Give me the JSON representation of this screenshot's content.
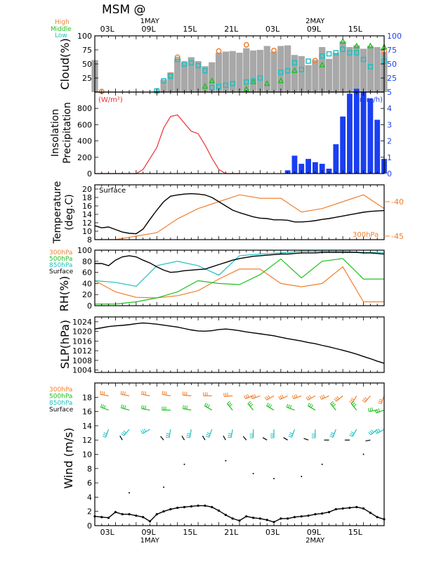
{
  "header": {
    "title": "MSM  @",
    "top_day_labels": [
      "1MAY",
      "2MAY"
    ],
    "bottom_day_labels": [
      "1MAY",
      "2MAY"
    ],
    "time_labels": [
      "03L",
      "09L",
      "15L",
      "21L",
      "03L",
      "09L",
      "15L"
    ]
  },
  "colors": {
    "high": "#f08030",
    "middle": "#20c020",
    "low": "#20c0c0",
    "surface": "#000000",
    "insolation": "#e83030",
    "precip": "#1a3ff0",
    "cloud_bar": "#a8a8a8",
    "right_axis": "#1a3ff0"
  },
  "chart_data": [
    {
      "panel": "cloud",
      "type": "bar",
      "ylabel": "Cloud(%)",
      "ylim": [
        0,
        100
      ],
      "yticks": [
        25,
        50,
        75,
        100
      ],
      "right_yticks": [
        25,
        50,
        75,
        100
      ],
      "legend": [
        "High",
        "Middle",
        "Low"
      ],
      "x": [
        0,
        1,
        2,
        3,
        4,
        5,
        6,
        7,
        8,
        9,
        10,
        11,
        12,
        13,
        14,
        15,
        16,
        17,
        18,
        19,
        20,
        21,
        22,
        23,
        24,
        25,
        26,
        27,
        28,
        29,
        30,
        31,
        32,
        33,
        34,
        35,
        36,
        37,
        38,
        39,
        40,
        41,
        42
      ],
      "series": [
        {
          "name": "Total",
          "values": [
            57,
            0,
            0,
            0,
            0,
            0,
            0,
            0,
            0,
            3,
            22,
            35,
            60,
            53,
            62,
            55,
            46,
            53,
            70,
            72,
            73,
            70,
            78,
            74,
            75,
            82,
            72,
            82,
            83,
            66,
            64,
            48,
            57,
            80,
            59,
            70,
            90,
            80,
            83,
            77,
            82,
            80,
            71
          ]
        },
        {
          "name": "High",
          "values": [
            null,
            1,
            null,
            null,
            null,
            null,
            null,
            null,
            null,
            null,
            null,
            30,
            62,
            null,
            null,
            null,
            null,
            null,
            73,
            null,
            null,
            null,
            84,
            null,
            null,
            null,
            74,
            null,
            null,
            null,
            null,
            null,
            56,
            null,
            null,
            null,
            null,
            null,
            null,
            null,
            null,
            null,
            73
          ]
        },
        {
          "name": "Middle",
          "values": [
            null,
            null,
            null,
            null,
            null,
            null,
            null,
            null,
            null,
            null,
            null,
            null,
            null,
            null,
            null,
            null,
            10,
            20,
            null,
            null,
            null,
            null,
            5,
            18,
            null,
            15,
            null,
            20,
            null,
            38,
            null,
            null,
            null,
            48,
            null,
            null,
            90,
            null,
            82,
            null,
            82,
            null,
            80
          ]
        },
        {
          "name": "Low",
          "values": [
            null,
            null,
            null,
            null,
            null,
            null,
            null,
            null,
            null,
            2,
            20,
            28,
            58,
            50,
            52,
            47,
            38,
            8,
            10,
            12,
            15,
            null,
            18,
            20,
            25,
            null,
            null,
            35,
            38,
            52,
            40,
            55,
            null,
            64,
            68,
            70,
            76,
            70,
            70,
            58,
            45,
            null,
            55
          ]
        }
      ]
    },
    {
      "panel": "insolation",
      "type": "line",
      "ylabel": "Insolation Precipitation",
      "left_unit": "(W/m²)",
      "right_unit": "(mm/h)",
      "ylim": [
        0,
        1000
      ],
      "yticks": [
        0,
        200,
        400,
        600,
        800
      ],
      "right_ylim": [
        0,
        5
      ],
      "right_yticks": [
        0,
        1,
        2,
        3,
        4,
        5
      ],
      "x": [
        0,
        3,
        6,
        7,
        9,
        10,
        11,
        12,
        13,
        14,
        15,
        16,
        17,
        18,
        19,
        20,
        21
      ],
      "insolation": [
        0,
        0,
        0,
        50,
        320,
        560,
        700,
        720,
        620,
        520,
        490,
        350,
        190,
        50,
        0,
        0,
        0
      ],
      "precip_x": [
        28,
        29,
        30,
        31,
        32,
        33,
        34,
        35,
        36,
        37,
        38,
        39,
        40,
        41,
        42
      ],
      "precip": [
        0.2,
        1.1,
        0.6,
        0.9,
        0.7,
        0.6,
        0.3,
        1.8,
        3.5,
        4.9,
        5.2,
        5.0,
        4.6,
        3.3,
        0.9
      ]
    },
    {
      "panel": "temperature",
      "type": "line",
      "ylabel": "Temperature (deg.C)",
      "ylim": [
        8,
        21
      ],
      "yticks": [
        8,
        10,
        12,
        14,
        16,
        18,
        20
      ],
      "right_labels": [
        "-40",
        "-45"
      ],
      "inner_labels": [
        "Surface",
        "300hPa"
      ],
      "surface_x": [
        0,
        1,
        2,
        3,
        4,
        5,
        6,
        7,
        8,
        9,
        10,
        11,
        12,
        13,
        14,
        15,
        16,
        17,
        18,
        19,
        20,
        21,
        22,
        23,
        24,
        25,
        26,
        27,
        28,
        29,
        30,
        31,
        32,
        33,
        34,
        35,
        36,
        37,
        38,
        39,
        40,
        41,
        42
      ],
      "surface": [
        11.3,
        10.8,
        11.0,
        10.4,
        9.8,
        9.5,
        9.4,
        10.5,
        12.8,
        15.0,
        17.0,
        18.3,
        18.6,
        18.8,
        18.9,
        18.8,
        18.6,
        18.0,
        17.0,
        16.0,
        15.0,
        14.4,
        13.9,
        13.4,
        13.1,
        13.0,
        12.7,
        12.7,
        12.6,
        12.2,
        12.2,
        12.3,
        12.5,
        12.8,
        13.0,
        13.3,
        13.6,
        13.9,
        14.2,
        14.5,
        14.7,
        14.8,
        14.9
      ],
      "upper_x": [
        0,
        3,
        6,
        9,
        12,
        15,
        18,
        21,
        24,
        27,
        30,
        33,
        36,
        39,
        42
      ],
      "upper_300hPa": [
        -45.5,
        -45.5,
        -45.0,
        -44.5,
        -42.5,
        -41.0,
        -40.0,
        -39.0,
        -39.5,
        -39.5,
        -41.5,
        -41.0,
        -40.0,
        -39.0,
        -41.0
      ]
    },
    {
      "panel": "rh",
      "type": "line",
      "ylabel": "RH(%)",
      "ylim": [
        0,
        100
      ],
      "yticks": [
        0,
        20,
        40,
        60,
        80,
        100
      ],
      "legend": [
        "300hPa",
        "500hPa",
        "850hPa",
        "Surface"
      ],
      "series_x": [
        0,
        3,
        6,
        9,
        12,
        15,
        18,
        21,
        24,
        27,
        30,
        33,
        36,
        39,
        42
      ],
      "series": [
        {
          "name": "300hPa",
          "values": [
            45,
            25,
            15,
            14,
            18,
            27,
            48,
            66,
            66,
            40,
            34,
            40,
            70,
            7,
            7
          ]
        },
        {
          "name": "500hPa",
          "values": [
            3,
            3,
            7,
            14,
            25,
            45,
            40,
            38,
            56,
            84,
            50,
            80,
            85,
            48,
            48
          ]
        },
        {
          "name": "850hPa",
          "values": [
            45,
            42,
            35,
            72,
            80,
            72,
            55,
            90,
            93,
            95,
            98,
            98,
            98,
            96,
            96
          ]
        },
        {
          "name": "Surface",
          "x": [
            0,
            1,
            2,
            3,
            4,
            5,
            6,
            7,
            8,
            9,
            10,
            11,
            12,
            13,
            14,
            15,
            16,
            17,
            18,
            19,
            20,
            21,
            22,
            23,
            24,
            25,
            26,
            27,
            28,
            29,
            30,
            31,
            32,
            33,
            34,
            35,
            36,
            37,
            38,
            39,
            40,
            41,
            42
          ],
          "values": [
            76,
            76,
            72,
            82,
            88,
            90,
            88,
            82,
            77,
            70,
            64,
            60,
            61,
            63,
            64,
            65,
            66,
            70,
            74,
            78,
            82,
            85,
            87,
            89,
            90,
            91,
            92,
            93,
            93,
            94,
            95,
            95,
            95,
            96,
            96,
            96,
            96,
            96,
            96,
            95,
            95,
            94,
            93
          ]
        }
      ]
    },
    {
      "panel": "slp",
      "type": "line",
      "ylabel": "SLP(hPa)",
      "ylim": [
        1003,
        1026
      ],
      "yticks": [
        1004,
        1008,
        1012,
        1016,
        1020,
        1024
      ],
      "x": [
        0,
        1,
        2,
        3,
        4,
        5,
        6,
        7,
        8,
        9,
        10,
        11,
        12,
        13,
        14,
        15,
        16,
        17,
        18,
        19,
        20,
        21,
        22,
        23,
        24,
        25,
        26,
        27,
        28,
        29,
        30,
        31,
        32,
        33,
        34,
        35,
        36,
        37,
        38,
        39,
        40,
        41,
        42
      ],
      "values": [
        1021.0,
        1021.5,
        1022.0,
        1022.3,
        1022.5,
        1022.8,
        1023.2,
        1023.5,
        1023.3,
        1023.0,
        1022.6,
        1022.2,
        1021.8,
        1021.2,
        1020.6,
        1020.2,
        1020.1,
        1020.3,
        1020.8,
        1021.0,
        1020.7,
        1020.3,
        1019.8,
        1019.4,
        1019.0,
        1018.6,
        1018.2,
        1017.6,
        1017.0,
        1016.5,
        1016.0,
        1015.4,
        1014.9,
        1014.2,
        1013.6,
        1012.9,
        1012.2,
        1011.4,
        1010.6,
        1009.6,
        1008.7,
        1007.7,
        1006.8
      ]
    },
    {
      "panel": "wind",
      "type": "line",
      "ylabel": "Wind (m/s)",
      "ylim": [
        0,
        20
      ],
      "yticks": [
        0,
        2,
        4,
        6,
        8,
        10,
        12,
        14,
        16,
        18
      ],
      "legend": [
        "300hPa",
        "500hPa",
        "850hPa",
        "Surface"
      ],
      "x": [
        0,
        1,
        2,
        3,
        4,
        5,
        6,
        7,
        8,
        9,
        10,
        11,
        12,
        13,
        14,
        15,
        16,
        17,
        18,
        19,
        20,
        21,
        22,
        23,
        24,
        25,
        26,
        27,
        28,
        29,
        30,
        31,
        32,
        33,
        34,
        35,
        36,
        37,
        38,
        39,
        40,
        41,
        42
      ],
      "surface_speed": [
        1.3,
        1.2,
        1.1,
        1.9,
        1.6,
        1.6,
        1.4,
        1.2,
        0.6,
        1.6,
        2.0,
        2.3,
        2.5,
        2.6,
        2.7,
        2.8,
        2.8,
        2.6,
        2.1,
        1.5,
        1.0,
        0.7,
        1.3,
        1.1,
        1.0,
        0.8,
        0.5,
        1.0,
        1.0,
        1.2,
        1.3,
        1.4,
        1.6,
        1.7,
        1.9,
        2.3,
        2.4,
        2.5,
        2.6,
        2.4,
        1.8,
        1.2,
        0.9
      ],
      "barb_levels": [
        {
          "name": "300hPa",
          "row": 18.2,
          "barb_x": [
            2,
            5,
            8,
            11,
            14,
            17,
            20,
            23,
            24,
            26,
            28,
            30,
            32,
            34,
            36,
            38,
            40,
            42
          ],
          "barb_dir": [
            280,
            280,
            280,
            280,
            275,
            270,
            265,
            250,
            250,
            240,
            245,
            250,
            240,
            245,
            230,
            210,
            220,
            200
          ]
        },
        {
          "name": "500hPa",
          "row": 16.2,
          "barb_x": [
            2,
            5,
            8,
            11,
            14,
            17,
            20,
            23,
            26,
            29,
            32,
            35,
            38,
            41,
            42
          ],
          "barb_dir": [
            290,
            285,
            280,
            270,
            280,
            300,
            320,
            320,
            300,
            290,
            300,
            320,
            320,
            260,
            250
          ]
        },
        {
          "name": "850hPa",
          "row": 13.5,
          "barb_x": [
            2,
            5,
            8,
            11,
            14,
            17,
            20,
            23,
            26,
            29,
            32,
            35,
            38,
            41,
            42
          ],
          "barb_dir": [
            200,
            220,
            240,
            190,
            190,
            200,
            190,
            180,
            180,
            200,
            180,
            200,
            210,
            230,
            240
          ]
        },
        {
          "name": "Surface",
          "row": 12.0,
          "barb_x": [
            4,
            10,
            13,
            16,
            19,
            22,
            25,
            28,
            31,
            34,
            37,
            40
          ],
          "barb_dir": [
            330,
            320,
            330,
            330,
            330,
            320,
            300,
            300,
            290,
            270,
            270,
            260
          ]
        }
      ]
    }
  ]
}
